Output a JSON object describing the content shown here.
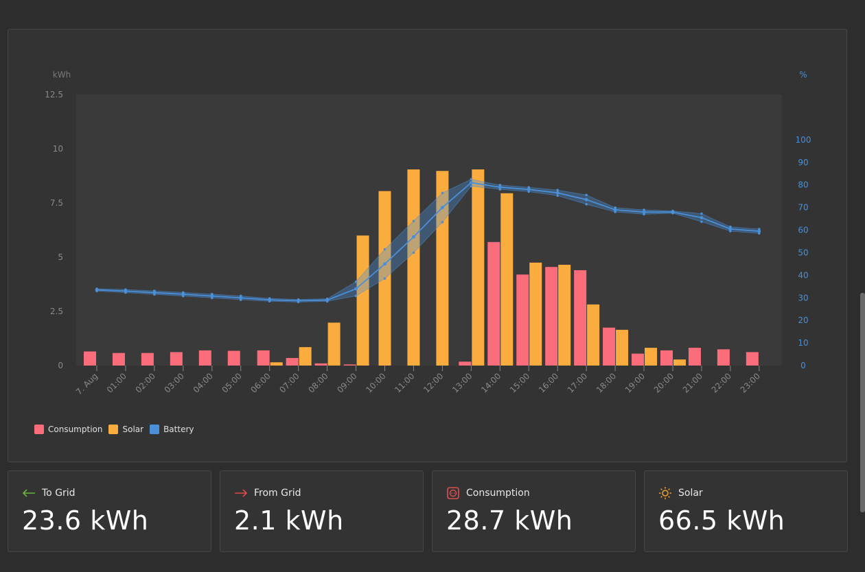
{
  "colors": {
    "consumption": "#fc6d7c",
    "solar": "#fbac3e",
    "battery": "#4a90d9",
    "to_grid_arrow": "#6db33f",
    "from_grid_arrow": "#e04848",
    "consumption_icon": "#e05050",
    "solar_icon": "#f0a030"
  },
  "chart_data": {
    "type": "bar",
    "left_axis_unit": "kWh",
    "right_axis_unit": "%",
    "left_ticks": [
      "0",
      "2.5",
      "5",
      "7.5",
      "10",
      "12.5"
    ],
    "right_ticks": [
      "0",
      "10",
      "20",
      "30",
      "40",
      "50",
      "60",
      "70",
      "80",
      "90",
      "100"
    ],
    "ylim": [
      0,
      12.5
    ],
    "y2lim": [
      0,
      120
    ],
    "categories": [
      "7. Aug",
      "01:00",
      "02:00",
      "03:00",
      "04:00",
      "05:00",
      "06:00",
      "07:00",
      "08:00",
      "09:00",
      "10:00",
      "11:00",
      "12:00",
      "13:00",
      "14:00",
      "15:00",
      "16:00",
      "17:00",
      "18:00",
      "19:00",
      "20:00",
      "21:00",
      "22:00",
      "23:00"
    ],
    "series": [
      {
        "name": "Consumption",
        "values": [
          0.65,
          0.58,
          0.58,
          0.62,
          0.7,
          0.68,
          0.7,
          0.35,
          0.1,
          0.05,
          0,
          0,
          0,
          0.18,
          5.7,
          4.2,
          4.55,
          4.4,
          1.75,
          0.55,
          0.7,
          0.82,
          0.75,
          0.62
        ]
      },
      {
        "name": "Solar",
        "values": [
          0,
          0,
          0,
          0,
          0,
          0,
          0.15,
          0.85,
          1.98,
          6.0,
          8.05,
          9.05,
          8.98,
          9.05,
          7.95,
          4.75,
          4.65,
          2.82,
          1.65,
          0.82,
          0.28,
          0,
          0,
          0
        ]
      },
      {
        "name": "Battery",
        "values": [
          33.5,
          33,
          32.3,
          31.6,
          30.8,
          30,
          29.1,
          28.7,
          29,
          34,
          45,
          57,
          70,
          81,
          79,
          78,
          76.5,
          73.5,
          69,
          68,
          68,
          65.5,
          60.5,
          59.5
        ]
      }
    ]
  },
  "cards": [
    {
      "label": "To Grid",
      "value": "23.6 kWh",
      "icon": "left-arrow-icon"
    },
    {
      "label": "From Grid",
      "value": "2.1 kWh",
      "icon": "right-arrow-icon"
    },
    {
      "label": "Consumption",
      "value": "28.7 kWh",
      "icon": "plug-icon"
    },
    {
      "label": "Solar",
      "value": "66.5 kWh",
      "icon": "sun-icon"
    }
  ]
}
